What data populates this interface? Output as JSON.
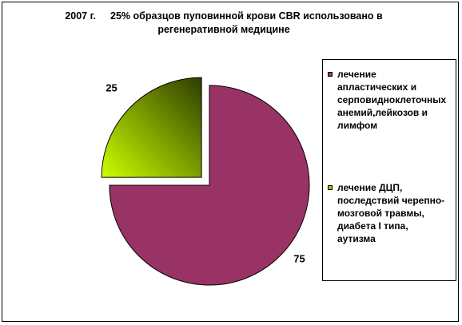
{
  "chart_data": {
    "type": "pie",
    "title_year": "2007 г.",
    "title": "25% образцов пуповинной крови CBR использовано в регенеративной медицине",
    "slices": [
      {
        "label": "лечение\nапластических и\nсерповидноклеточных\nанемий,лейкозов и\nлимфом",
        "value": 75,
        "value_label": "75",
        "color": "#993366"
      },
      {
        "label": "лечение ДЦП,\nпоследствий черепно-\nмозговой травмы,\nдиабета I типа,\nаутизма",
        "value": 25,
        "value_label": "25",
        "color": "#99cc00"
      }
    ],
    "legend_position": "right",
    "exploded_slice": 1
  }
}
